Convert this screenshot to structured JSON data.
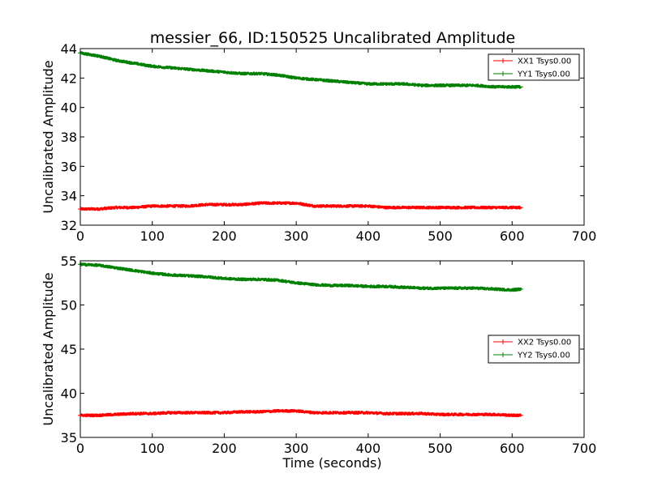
{
  "chart_data": [
    {
      "type": "line",
      "title": "messier_66, ID:150525 Uncalibrated Amplitude",
      "xlabel": "",
      "ylabel": "Uncalibrated Amplitude",
      "xlim": [
        0,
        700
      ],
      "ylim": [
        32,
        44
      ],
      "xticks": [
        0,
        100,
        200,
        300,
        400,
        500,
        600,
        700
      ],
      "yticks": [
        32,
        34,
        36,
        38,
        40,
        42,
        44
      ],
      "legend_position": "top-right",
      "series": [
        {
          "name": "XX1 Tsys0.00",
          "color": "#ff0000",
          "x": [
            0,
            25,
            50,
            75,
            100,
            125,
            150,
            175,
            200,
            225,
            250,
            275,
            300,
            325,
            350,
            375,
            400,
            425,
            450,
            475,
            500,
            525,
            550,
            575,
            600,
            612
          ],
          "y": [
            33.1,
            33.1,
            33.2,
            33.2,
            33.3,
            33.3,
            33.3,
            33.4,
            33.4,
            33.4,
            33.5,
            33.5,
            33.5,
            33.3,
            33.3,
            33.3,
            33.3,
            33.2,
            33.2,
            33.2,
            33.2,
            33.2,
            33.2,
            33.2,
            33.2,
            33.2
          ]
        },
        {
          "name": "YY1 Tsys0.00",
          "color": "#008000",
          "x": [
            0,
            25,
            50,
            75,
            100,
            125,
            150,
            175,
            200,
            225,
            250,
            275,
            300,
            325,
            350,
            375,
            400,
            425,
            450,
            475,
            500,
            525,
            550,
            575,
            600,
            612
          ],
          "y": [
            43.7,
            43.5,
            43.2,
            43.0,
            42.8,
            42.7,
            42.6,
            42.5,
            42.4,
            42.3,
            42.3,
            42.2,
            42.0,
            41.9,
            41.8,
            41.7,
            41.6,
            41.6,
            41.6,
            41.5,
            41.5,
            41.5,
            41.5,
            41.4,
            41.4,
            41.4
          ]
        }
      ]
    },
    {
      "type": "line",
      "title": "",
      "xlabel": "Time (seconds)",
      "ylabel": "Uncalibrated Amplitude",
      "xlim": [
        0,
        700
      ],
      "ylim": [
        35,
        55
      ],
      "xticks": [
        0,
        100,
        200,
        300,
        400,
        500,
        600,
        700
      ],
      "yticks": [
        35,
        40,
        45,
        50,
        55
      ],
      "legend_position": "center-right",
      "series": [
        {
          "name": "XX2 Tsys0.00",
          "color": "#ff0000",
          "x": [
            0,
            25,
            50,
            75,
            100,
            125,
            150,
            175,
            200,
            225,
            250,
            275,
            300,
            325,
            350,
            375,
            400,
            425,
            450,
            475,
            500,
            525,
            550,
            575,
            600,
            612
          ],
          "y": [
            37.5,
            37.5,
            37.6,
            37.7,
            37.7,
            37.8,
            37.8,
            37.8,
            37.8,
            37.9,
            37.9,
            38.0,
            38.0,
            37.8,
            37.8,
            37.8,
            37.8,
            37.7,
            37.7,
            37.7,
            37.6,
            37.6,
            37.6,
            37.6,
            37.5,
            37.5
          ]
        },
        {
          "name": "YY2 Tsys0.00",
          "color": "#008000",
          "x": [
            0,
            25,
            50,
            75,
            100,
            125,
            150,
            175,
            200,
            225,
            250,
            275,
            300,
            325,
            350,
            375,
            400,
            425,
            450,
            475,
            500,
            525,
            550,
            575,
            600,
            612
          ],
          "y": [
            54.6,
            54.5,
            54.2,
            53.9,
            53.6,
            53.4,
            53.3,
            53.2,
            53.0,
            52.9,
            52.9,
            52.8,
            52.5,
            52.3,
            52.2,
            52.2,
            52.1,
            52.1,
            52.0,
            51.9,
            51.9,
            51.9,
            51.9,
            51.8,
            51.7,
            51.8
          ]
        }
      ]
    }
  ]
}
